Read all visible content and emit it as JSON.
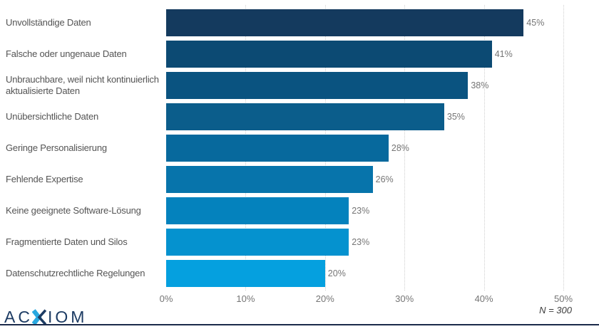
{
  "chart_data": {
    "type": "bar",
    "orientation": "horizontal",
    "title": "",
    "categories": [
      "Unvollständige Daten",
      "Falsche oder ungenaue Daten",
      "Unbrauchbare, weil nicht kontinuierlich aktualisierte Daten",
      "Unübersichtliche Daten",
      "Geringe Personalisierung",
      "Fehlende Expertise",
      "Keine geeignete Software-Lösung",
      "Fragmentierte Daten und Silos",
      "Datenschutzrechtliche Regelungen"
    ],
    "values": [
      45,
      41,
      38,
      35,
      28,
      26,
      23,
      23,
      20
    ],
    "value_labels": [
      "45%",
      "41%",
      "38%",
      "35%",
      "28%",
      "26%",
      "23%",
      "23%",
      "20%"
    ],
    "bar_colors": [
      "#143a5e",
      "#0c4a73",
      "#0a5380",
      "#0b5d8b",
      "#07699d",
      "#0774ab",
      "#0482bd",
      "#0592cf",
      "#05a0df"
    ],
    "x_ticks": [
      "0%",
      "10%",
      "20%",
      "30%",
      "40%",
      "50%"
    ],
    "x_tick_values": [
      0,
      10,
      20,
      30,
      40,
      50
    ],
    "xlim": [
      0,
      50
    ],
    "grid": "vertical-dotted",
    "legend": "none",
    "sample_note": "N = 300"
  },
  "footer": {
    "logo_prefix": "AC",
    "logo_suffix": "IOM",
    "logo_color": "#1c3b63",
    "logo_accent_color": "#29a8e0",
    "note": "N = 300",
    "rule_color": "#1b2a4a"
  },
  "colors": {
    "category_label": "#545454",
    "value_label": "#757575",
    "tick_label": "#757575",
    "gridline": "#cfcfcf",
    "background": "#ffffff"
  }
}
